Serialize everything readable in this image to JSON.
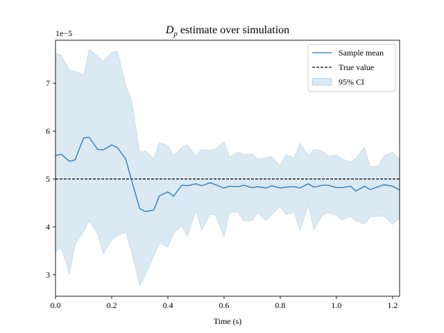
{
  "chart_data": {
    "type": "line",
    "title": "estimate over simulation",
    "title_math": {
      "base": "D",
      "sub": "p"
    },
    "xlabel": "Time (s)",
    "ylabel": "",
    "y_multiplier_label": "1e−5",
    "xlim": [
      0.0,
      1.225
    ],
    "ylim": [
      2.55,
      7.9
    ],
    "x_ticks": [
      0.0,
      0.2,
      0.4,
      0.6,
      0.8,
      1.0,
      1.2
    ],
    "x_tick_labels": [
      "0.0",
      "0.2",
      "0.4",
      "0.6",
      "0.8",
      "1.0",
      "1.2"
    ],
    "y_ticks": [
      3,
      4,
      5,
      6,
      7
    ],
    "y_tick_labels": [
      "3",
      "4",
      "5",
      "6",
      "7"
    ],
    "grid": false,
    "legend_position": "top-right",
    "x": [
      0.0,
      0.02,
      0.05,
      0.07,
      0.1,
      0.12,
      0.15,
      0.17,
      0.2,
      0.22,
      0.25,
      0.27,
      0.3,
      0.32,
      0.35,
      0.37,
      0.4,
      0.42,
      0.45,
      0.47,
      0.5,
      0.52,
      0.55,
      0.57,
      0.6,
      0.62,
      0.65,
      0.67,
      0.7,
      0.72,
      0.75,
      0.77,
      0.8,
      0.82,
      0.85,
      0.87,
      0.9,
      0.92,
      0.95,
      0.97,
      1.0,
      1.02,
      1.05,
      1.07,
      1.1,
      1.12,
      1.15,
      1.17,
      1.2,
      1.225
    ],
    "series": [
      {
        "name": "Sample mean",
        "kind": "line",
        "color": "#1f77b4",
        "values": [
          5.49,
          5.52,
          5.37,
          5.4,
          5.86,
          5.87,
          5.62,
          5.61,
          5.71,
          5.66,
          5.42,
          4.99,
          4.38,
          4.32,
          4.35,
          4.65,
          4.73,
          4.64,
          4.87,
          4.86,
          4.9,
          4.86,
          4.92,
          4.88,
          4.81,
          4.85,
          4.84,
          4.87,
          4.82,
          4.84,
          4.81,
          4.86,
          4.81,
          4.83,
          4.84,
          4.81,
          4.9,
          4.83,
          4.87,
          4.87,
          4.82,
          4.82,
          4.85,
          4.75,
          4.85,
          4.78,
          4.84,
          4.88,
          4.85,
          4.77
        ]
      },
      {
        "name": "True value",
        "kind": "hline",
        "color": "#000000",
        "value": 5.0
      },
      {
        "name": "95% CI",
        "kind": "band",
        "color": "#1f77b4",
        "lower": [
          3.48,
          3.57,
          3.01,
          3.64,
          3.9,
          4.12,
          3.85,
          3.43,
          3.73,
          3.82,
          3.89,
          3.5,
          2.77,
          3.0,
          3.39,
          3.67,
          3.58,
          3.86,
          4.02,
          3.8,
          4.36,
          3.93,
          4.26,
          4.24,
          3.79,
          4.31,
          4.3,
          4.12,
          4.13,
          4.29,
          4.13,
          4.26,
          4.42,
          4.25,
          4.31,
          3.92,
          4.45,
          3.95,
          4.24,
          4.3,
          4.24,
          4.14,
          4.22,
          4.12,
          4.06,
          4.21,
          4.22,
          4.22,
          4.05,
          4.19
        ],
        "upper": [
          7.63,
          7.59,
          7.27,
          7.26,
          7.16,
          7.7,
          7.57,
          7.45,
          7.65,
          7.68,
          6.97,
          6.66,
          5.56,
          5.58,
          5.43,
          5.76,
          5.7,
          5.48,
          5.66,
          5.71,
          5.47,
          5.62,
          5.6,
          5.63,
          5.78,
          5.46,
          5.56,
          5.51,
          5.52,
          5.41,
          5.45,
          5.47,
          5.27,
          5.51,
          5.44,
          5.75,
          5.48,
          5.62,
          5.58,
          5.48,
          5.5,
          5.42,
          5.35,
          5.44,
          5.66,
          5.26,
          5.28,
          5.49,
          5.56,
          5.4
        ]
      }
    ]
  }
}
